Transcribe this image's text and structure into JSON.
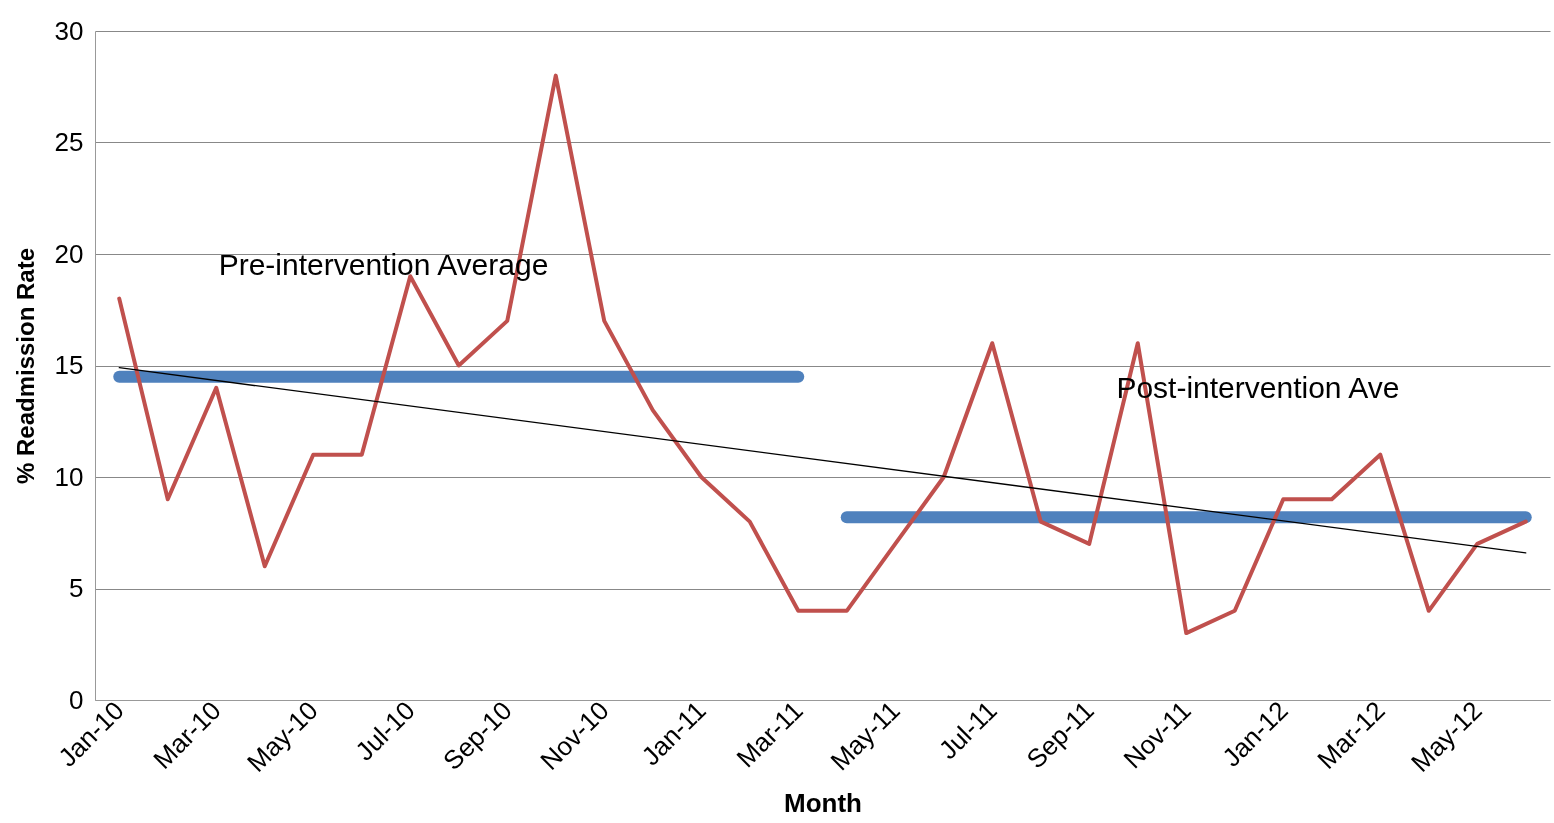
{
  "chart_data": {
    "type": "line",
    "xlabel": "Month",
    "ylabel": "% Readmission Rate",
    "categories": [
      "Jan-10",
      null,
      "Mar-10",
      null,
      "May-10",
      null,
      "Jul-10",
      null,
      "Sep-10",
      null,
      "Nov-10",
      null,
      "Jan-11",
      null,
      "Mar-11",
      null,
      "May-11",
      null,
      "Jul-11",
      null,
      "Sep-11",
      null,
      "Nov-11",
      null,
      "Jan-12",
      null,
      "Mar-12",
      null,
      "May-12",
      null
    ],
    "series": [
      {
        "color": "#4f81bd",
        "values": [
          14.5,
          14.5,
          14.5,
          14.5,
          14.5,
          14.5,
          14.5,
          14.5,
          14.5,
          14.5,
          14.5,
          14.5,
          14.5,
          14.5,
          14.5,
          null,
          null,
          null,
          null,
          null,
          null,
          null,
          null,
          null,
          null,
          null,
          null,
          null,
          null,
          null
        ]
      },
      {
        "color": "#4f81bd",
        "values": [
          null,
          null,
          null,
          null,
          null,
          null,
          null,
          null,
          null,
          null,
          null,
          null,
          null,
          null,
          null,
          8.2,
          8.2,
          8.2,
          8.2,
          8.2,
          8.2,
          8.2,
          8.2,
          8.2,
          8.2,
          8.2,
          8.2,
          8.2,
          8.2,
          8.2
        ]
      },
      {
        "color": "#c0504d",
        "values": [
          18,
          9,
          14,
          6,
          11,
          11,
          19,
          15,
          17,
          28,
          17,
          13,
          10,
          8,
          4,
          4,
          7,
          10,
          16,
          8,
          7,
          16,
          3,
          4,
          9,
          9,
          11,
          4,
          7,
          8
        ]
      },
      {
        "color": "#000000",
        "values": [
          14.9,
          null,
          null,
          null,
          null,
          null,
          null,
          null,
          null,
          null,
          null,
          null,
          null,
          null,
          null,
          null,
          null,
          null,
          null,
          null,
          null,
          null,
          null,
          null,
          null,
          null,
          null,
          null,
          null,
          6.6
        ]
      }
    ],
    "ylim": [
      0,
      30
    ],
    "yticks": [
      0,
      5,
      10,
      15,
      20,
      25,
      30
    ],
    "grid": "y",
    "marker": "none",
    "line_style": "solid",
    "annotations": [
      "Pre-intervention  Average",
      "Post-intervention Ave"
    ]
  }
}
